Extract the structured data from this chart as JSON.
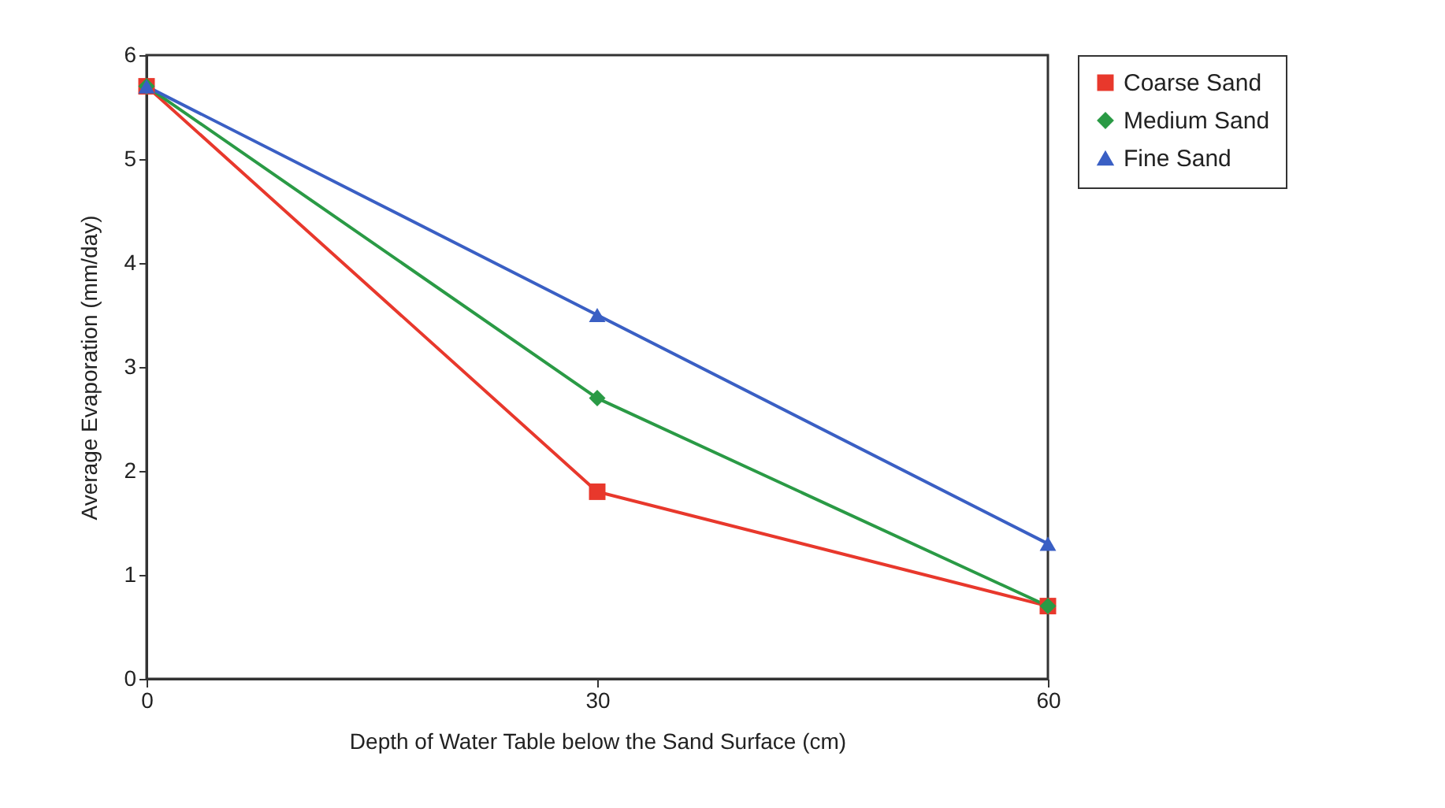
{
  "chart_data": {
    "type": "line",
    "xlabel": "Depth of Water Table below the Sand Surface (cm)",
    "ylabel": "Average Evaporation (mm/day)",
    "x": [
      0,
      30,
      60
    ],
    "xlim": [
      0,
      60
    ],
    "xticks": [
      0,
      30,
      60
    ],
    "ylim": [
      0,
      6
    ],
    "yticks": [
      0,
      1,
      2,
      3,
      4,
      5,
      6
    ],
    "grid": false,
    "legend": "right",
    "line_style": "solid",
    "series": [
      {
        "name": "Coarse Sand",
        "color": "#e8382c",
        "marker": "square",
        "values": [
          5.7,
          1.8,
          0.7
        ]
      },
      {
        "name": "Medium Sand",
        "color": "#2a9a45",
        "marker": "diamond",
        "values": [
          5.7,
          2.7,
          0.7
        ]
      },
      {
        "name": "Fine Sand",
        "color": "#3a5fc4",
        "marker": "triangle",
        "values": [
          5.7,
          3.5,
          1.3
        ]
      }
    ]
  }
}
